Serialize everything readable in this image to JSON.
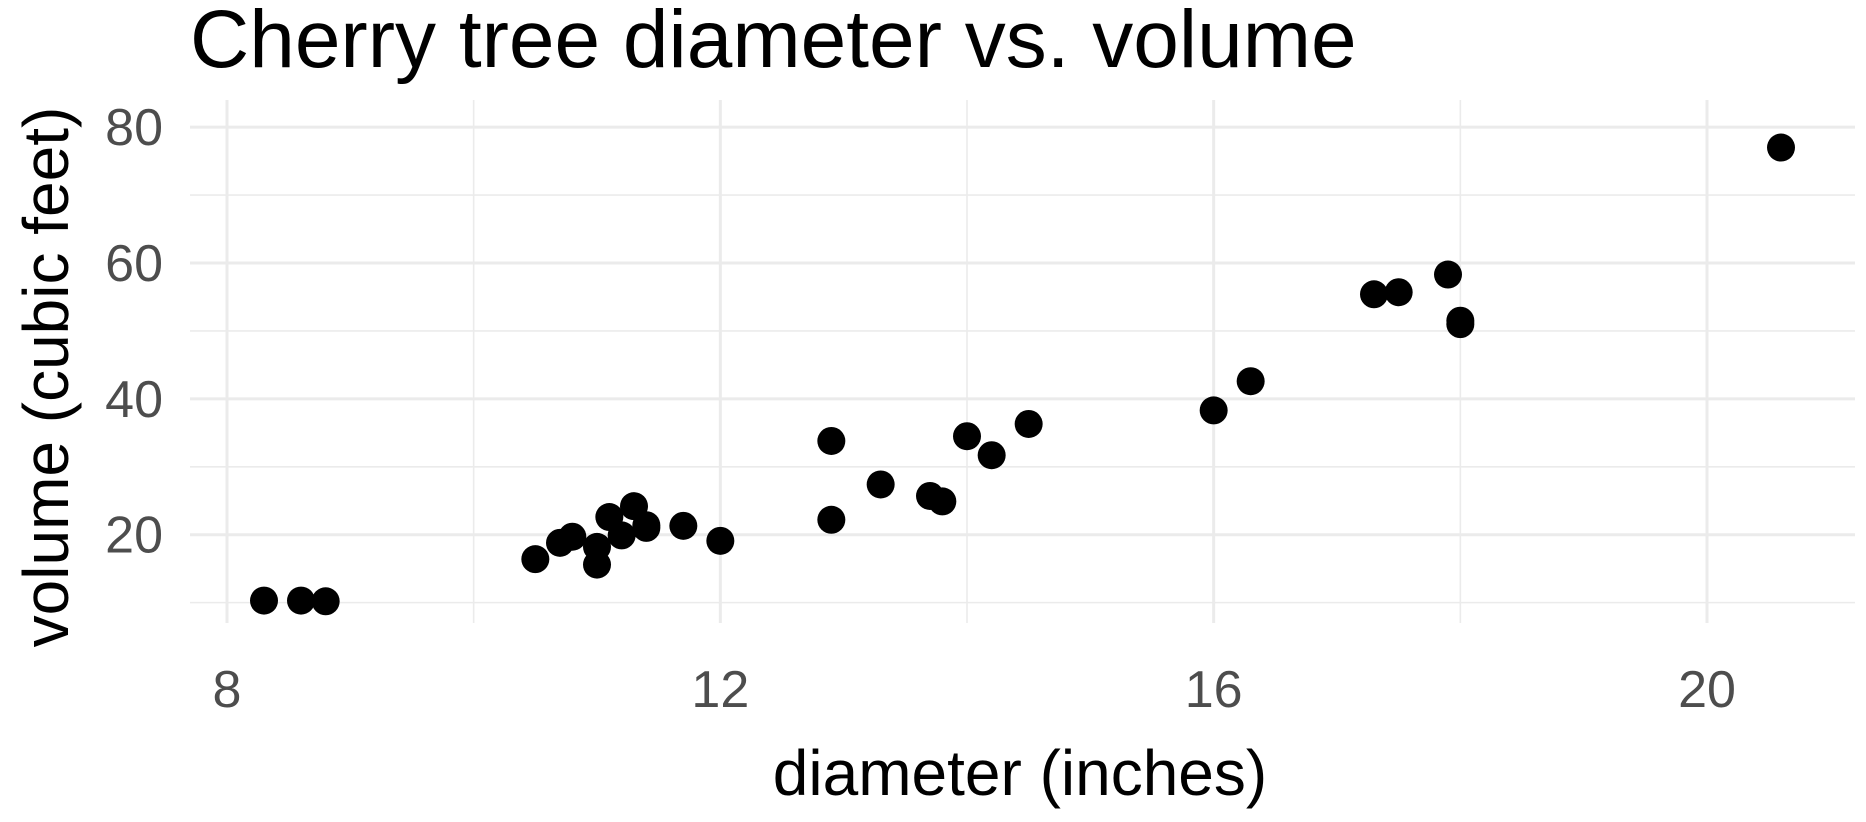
{
  "chart_data": {
    "type": "scatter",
    "title": "Cherry tree diameter vs. volume",
    "xlabel": "diameter (inches)",
    "ylabel": "volume (cubic feet)",
    "xlim": [
      7.7,
      21.2
    ],
    "ylim": [
      7,
      84
    ],
    "x_ticks": [
      8,
      12,
      16,
      20
    ],
    "x_tick_labels": [
      "8",
      "12",
      "16",
      "20"
    ],
    "x_minor_ticks": [
      10,
      14,
      18
    ],
    "y_ticks": [
      20,
      40,
      60,
      80
    ],
    "y_tick_labels": [
      "20",
      "40",
      "60",
      "80"
    ],
    "y_minor_ticks": [
      10,
      30,
      50,
      70
    ],
    "grid": true,
    "legend": "none",
    "point_color": "#000000",
    "points": [
      {
        "x": 8.3,
        "y": 10.3
      },
      {
        "x": 8.6,
        "y": 10.3
      },
      {
        "x": 8.8,
        "y": 10.2
      },
      {
        "x": 10.5,
        "y": 16.4
      },
      {
        "x": 10.7,
        "y": 18.8
      },
      {
        "x": 10.8,
        "y": 19.7
      },
      {
        "x": 11.0,
        "y": 15.6
      },
      {
        "x": 11.0,
        "y": 18.2
      },
      {
        "x": 11.1,
        "y": 22.6
      },
      {
        "x": 11.2,
        "y": 19.9
      },
      {
        "x": 11.3,
        "y": 24.2
      },
      {
        "x": 11.4,
        "y": 21.0
      },
      {
        "x": 11.4,
        "y": 21.4
      },
      {
        "x": 11.7,
        "y": 21.3
      },
      {
        "x": 12.0,
        "y": 19.1
      },
      {
        "x": 12.9,
        "y": 22.2
      },
      {
        "x": 12.9,
        "y": 33.8
      },
      {
        "x": 13.3,
        "y": 27.4
      },
      {
        "x": 13.7,
        "y": 25.7
      },
      {
        "x": 13.8,
        "y": 24.9
      },
      {
        "x": 14.0,
        "y": 34.5
      },
      {
        "x": 14.2,
        "y": 31.7
      },
      {
        "x": 14.5,
        "y": 36.3
      },
      {
        "x": 16.0,
        "y": 38.3
      },
      {
        "x": 16.3,
        "y": 42.6
      },
      {
        "x": 17.3,
        "y": 55.4
      },
      {
        "x": 17.5,
        "y": 55.7
      },
      {
        "x": 17.9,
        "y": 58.3
      },
      {
        "x": 18.0,
        "y": 51.5
      },
      {
        "x": 18.0,
        "y": 51.0
      },
      {
        "x": 20.6,
        "y": 77.0
      }
    ]
  }
}
